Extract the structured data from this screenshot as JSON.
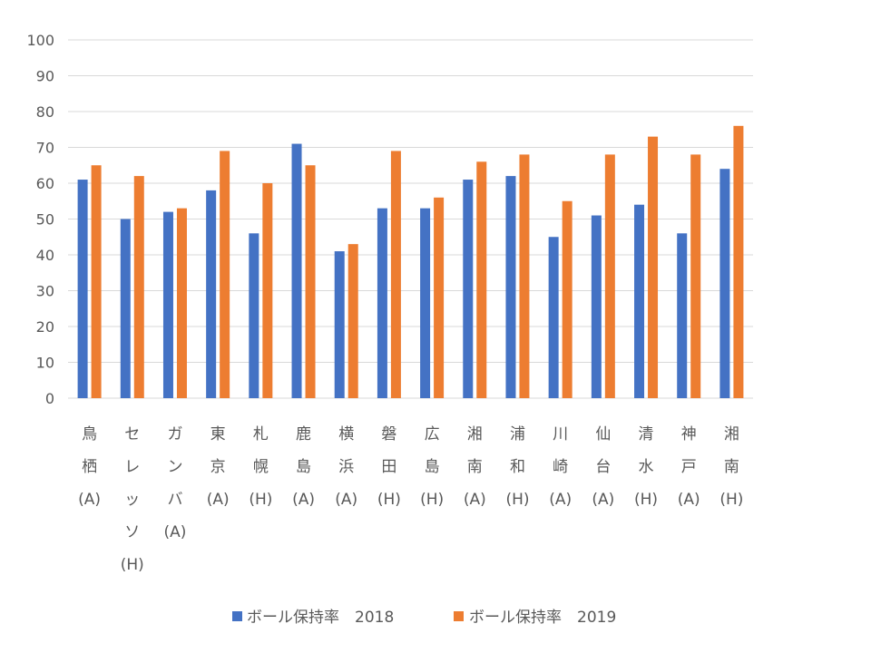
{
  "chart_data": {
    "type": "bar",
    "title": "",
    "xlabel": "",
    "ylabel": "",
    "ylim": [
      0,
      100
    ],
    "yticks": [
      0,
      10,
      20,
      30,
      40,
      50,
      60,
      70,
      80,
      90,
      100
    ],
    "categories": [
      "鳥栖(A)",
      "セレッソ(H)",
      "ガンバ(A)",
      "東京(A)",
      "札幌(H)",
      "鹿島(A)",
      "横浜(A)",
      "磐田(H)",
      "広島(H)",
      "湘南(A)",
      "浦和(H)",
      "川崎(A)",
      "仙台(A)",
      "清水(H)",
      "神戸(A)",
      "湘南(H)"
    ],
    "category_lines": [
      [
        "鳥",
        "栖",
        "(A)"
      ],
      [
        "セ",
        "レ",
        "ッ",
        "ソ",
        "(H)"
      ],
      [
        "ガ",
        "ン",
        "バ",
        "(A)"
      ],
      [
        "東",
        "京",
        "(A)"
      ],
      [
        "札",
        "幌",
        "(H)"
      ],
      [
        "鹿",
        "島",
        "(A)"
      ],
      [
        "横",
        "浜",
        "(A)"
      ],
      [
        "磐",
        "田",
        "(H)"
      ],
      [
        "広",
        "島",
        "(H)"
      ],
      [
        "湘",
        "南",
        "(A)"
      ],
      [
        "浦",
        "和",
        "(H)"
      ],
      [
        "川",
        "崎",
        "(A)"
      ],
      [
        "仙",
        "台",
        "(A)"
      ],
      [
        "清",
        "水",
        "(H)"
      ],
      [
        "神",
        "戸",
        "(A)"
      ],
      [
        "湘",
        "南",
        "(H)"
      ]
    ],
    "series": [
      {
        "name": "ボール保持率　2018",
        "color": "#4472c4",
        "values": [
          61,
          50,
          52,
          58,
          46,
          71,
          41,
          53,
          53,
          61,
          62,
          45,
          51,
          54,
          46,
          64
        ]
      },
      {
        "name": "ボール保持率　2019",
        "color": "#ed7d31",
        "values": [
          65,
          62,
          53,
          69,
          60,
          65,
          43,
          69,
          56,
          66,
          68,
          55,
          68,
          73,
          68,
          76
        ]
      }
    ],
    "legend_position": "bottom",
    "grid": true
  }
}
